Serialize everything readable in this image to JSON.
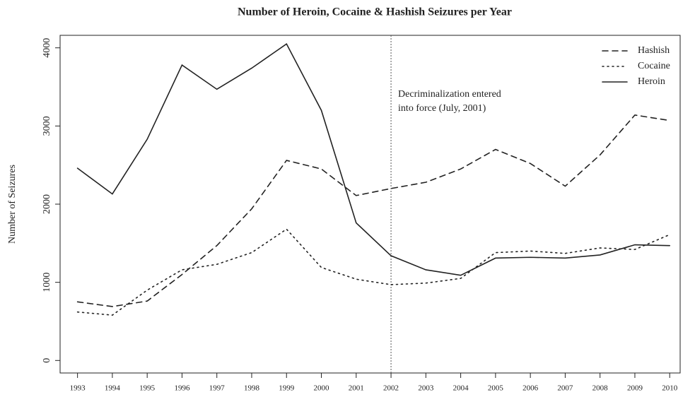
{
  "chart_data": {
    "type": "line",
    "title": "Number of Heroin, Cocaine & Hashish Seizures per Year",
    "y_label": "Number of Seizures",
    "x": [
      1993,
      1994,
      1995,
      1996,
      1997,
      1998,
      1999,
      2000,
      2001,
      2002,
      2003,
      2004,
      2005,
      2006,
      2007,
      2008,
      2009,
      2010
    ],
    "xlim": [
      1992.5,
      2010.3
    ],
    "xticks": [
      1993,
      1994,
      1995,
      1996,
      1997,
      1998,
      1999,
      2000,
      2001,
      2002,
      2003,
      2004,
      2005,
      2006,
      2007,
      2008,
      2009,
      2010
    ],
    "ylim": [
      -160,
      4160
    ],
    "yticks": [
      0,
      1000,
      2000,
      3000,
      4000
    ],
    "legend": "top-right",
    "series": [
      {
        "name": "Hashish",
        "color": "#222222",
        "linestyle": "dashed",
        "values": [
          750,
          690,
          760,
          1100,
          1470,
          1940,
          2560,
          2450,
          2110,
          2200,
          2280,
          2450,
          2700,
          2520,
          2230,
          2630,
          3140,
          3070
        ]
      },
      {
        "name": "Cocaine",
        "color": "#222222",
        "linestyle": "dotted",
        "values": [
          620,
          580,
          900,
          1160,
          1230,
          1380,
          1680,
          1190,
          1040,
          970,
          990,
          1050,
          1380,
          1400,
          1370,
          1440,
          1420,
          1610
        ]
      },
      {
        "name": "Heroin",
        "color": "#222222",
        "linestyle": "solid",
        "values": [
          2460,
          2130,
          2830,
          3780,
          3470,
          3740,
          4050,
          3200,
          1760,
          1340,
          1160,
          1090,
          1310,
          1320,
          1310,
          1350,
          1480,
          1470
        ]
      }
    ],
    "annotation": {
      "x": 2002,
      "lines": [
        "Decriminalization entered",
        "into force (July, 2001)"
      ]
    }
  }
}
